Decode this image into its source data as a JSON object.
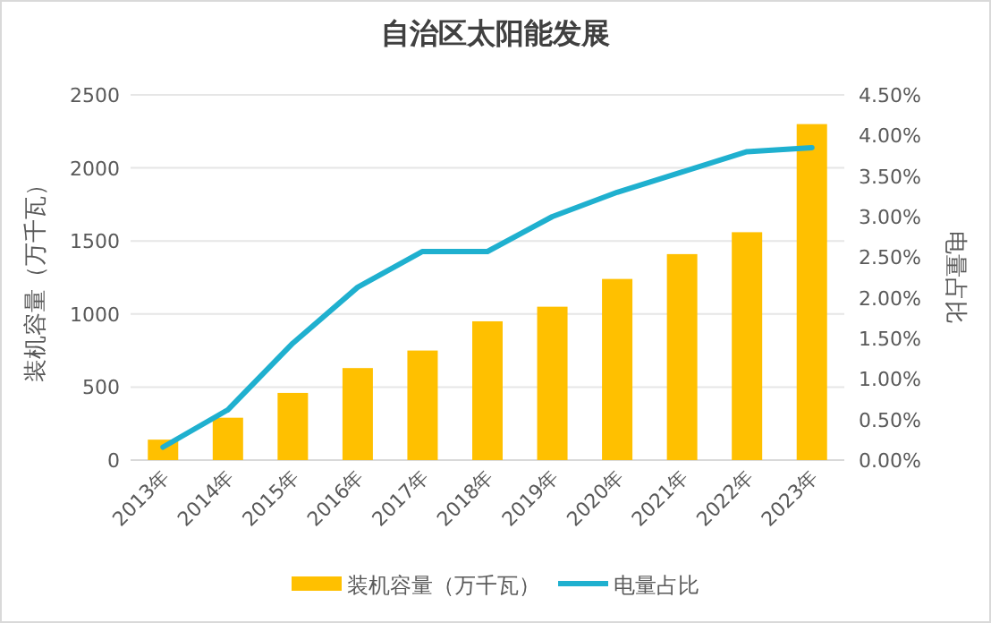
{
  "chart_data": {
    "type": "bar",
    "title": "自治区太阳能发展",
    "ylabel": "装机容量（万千瓦）",
    "y2label": "电量占比",
    "categories": [
      "2013年",
      "2014年",
      "2015年",
      "2016年",
      "2017年",
      "2018年",
      "2019年",
      "2020年",
      "2021年",
      "2022年",
      "2023年"
    ],
    "series": [
      {
        "name": "装机容量（万千瓦）",
        "color": "#ffc000",
        "values": [
          140,
          290,
          460,
          630,
          750,
          950,
          1050,
          1240,
          1410,
          1560,
          2300
        ]
      },
      {
        "name": "电量占比",
        "type": "line",
        "axis": "y2",
        "color": "#1fb0cf",
        "values": [
          0.16,
          0.62,
          1.44,
          2.13,
          2.57,
          2.57,
          3.0,
          3.3,
          3.55,
          3.8,
          3.85
        ]
      }
    ],
    "ylim": [
      0,
      2500
    ],
    "yticks": [
      0,
      500,
      1000,
      1500,
      2000,
      2500
    ],
    "y2lim": [
      0,
      4.5
    ],
    "y2ticks": [
      {
        "value": 0,
        "label": "0.00%"
      },
      {
        "value": 0.5,
        "label": "0.50%"
      },
      {
        "value": 1,
        "label": "1.00%"
      },
      {
        "value": 1.5,
        "label": "1.50%"
      },
      {
        "value": 2,
        "label": "2.00%"
      },
      {
        "value": 2.5,
        "label": "2.50%"
      },
      {
        "value": 3,
        "label": "3.00%"
      },
      {
        "value": 3.5,
        "label": "3.50%"
      },
      {
        "value": 4,
        "label": "4.00%"
      },
      {
        "value": 4.5,
        "label": "4.50%"
      }
    ],
    "grid": "y",
    "legend": "bottom",
    "marker": "none"
  }
}
